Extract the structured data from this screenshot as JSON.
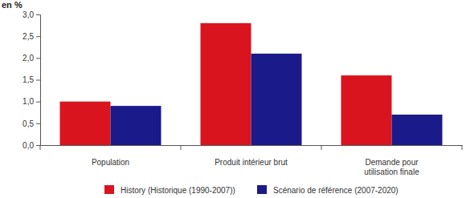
{
  "chart_data": {
    "type": "bar",
    "y_label": "en %",
    "categories": [
      "Population",
      "Produit intérieur brut",
      "Demande pour utilisation finale"
    ],
    "series": [
      {
        "name": "History (Historique (1990-2007))",
        "color": "#d9141f",
        "values": [
          1.0,
          2.8,
          1.6
        ]
      },
      {
        "name": "Scénario de référence (2007-2020)",
        "color": "#1b1a8a",
        "values": [
          0.9,
          2.1,
          0.7
        ]
      }
    ],
    "ylim": [
      0,
      3
    ],
    "yticks": [
      {
        "value": 0,
        "label": "0,0"
      },
      {
        "value": 0.5,
        "label": "0,5"
      },
      {
        "value": 1,
        "label": "1,0"
      },
      {
        "value": 1.5,
        "label": "1,5"
      },
      {
        "value": 2,
        "label": "2,0"
      },
      {
        "value": 2.5,
        "label": "2,5"
      },
      {
        "value": 3,
        "label": "3,0"
      }
    ],
    "grid": false,
    "legend": "bottom"
  }
}
